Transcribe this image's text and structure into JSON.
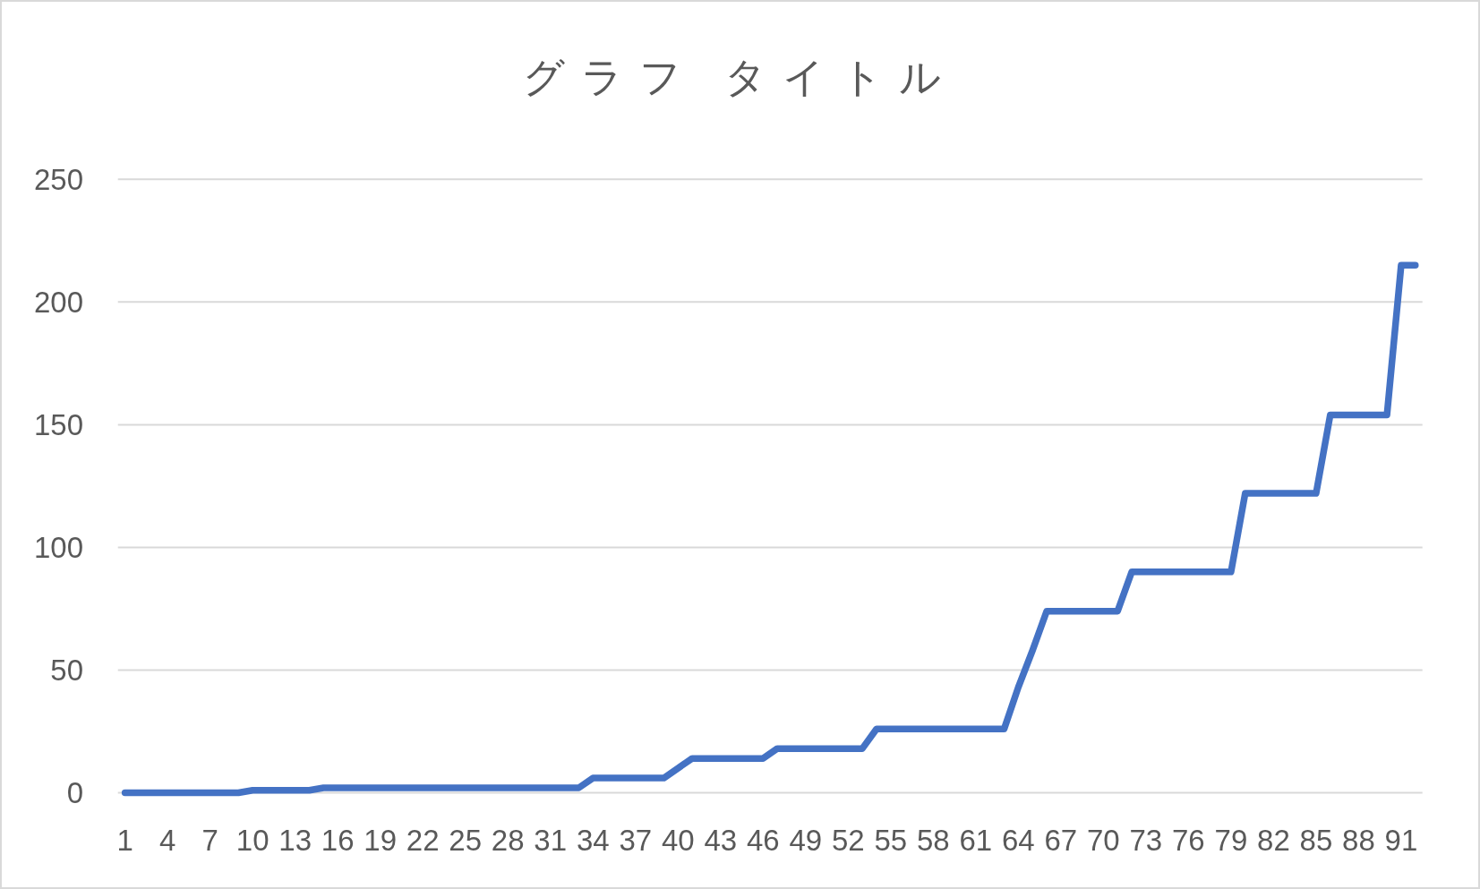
{
  "chart_data": {
    "type": "line",
    "title": "グラフ タイトル",
    "categories": [
      "1",
      null,
      null,
      "4",
      null,
      null,
      "7",
      null,
      null,
      "10",
      null,
      null,
      "13",
      null,
      null,
      "16",
      null,
      null,
      "19",
      null,
      null,
      "22",
      null,
      null,
      "25",
      null,
      null,
      "28",
      null,
      null,
      "31",
      null,
      null,
      "34",
      null,
      null,
      "37",
      null,
      null,
      "40",
      null,
      null,
      "43",
      null,
      null,
      "46",
      null,
      null,
      "49",
      null,
      null,
      "52",
      null,
      null,
      "55",
      null,
      null,
      "58",
      null,
      null,
      "61",
      null,
      null,
      "64",
      null,
      null,
      "67",
      null,
      null,
      "70",
      null,
      null,
      "73",
      null,
      null,
      "76",
      null,
      null,
      "79",
      null,
      null,
      "82",
      null,
      null,
      "85",
      null,
      null,
      "88",
      null,
      null,
      "91",
      null
    ],
    "values": [
      0,
      0,
      0,
      0,
      0,
      0,
      0,
      0,
      0,
      1,
      1,
      1,
      1,
      1,
      2,
      2,
      2,
      2,
      2,
      2,
      2,
      2,
      2,
      2,
      2,
      2,
      2,
      2,
      2,
      2,
      2,
      2,
      2,
      6,
      6,
      6,
      6,
      6,
      6,
      10,
      14,
      14,
      14,
      14,
      14,
      14,
      18,
      18,
      18,
      18,
      18,
      18,
      18,
      26,
      26,
      26,
      26,
      26,
      26,
      26,
      26,
      26,
      26,
      43,
      58,
      74,
      74,
      74,
      74,
      74,
      74,
      90,
      90,
      90,
      90,
      90,
      90,
      90,
      90,
      122,
      122,
      122,
      122,
      122,
      122,
      154,
      154,
      154,
      154,
      154,
      215,
      215
    ],
    "color": "#4472c4",
    "ylim": [
      0,
      250
    ],
    "yticks": [
      0,
      50,
      100,
      150,
      200,
      250
    ],
    "grid": "y"
  }
}
